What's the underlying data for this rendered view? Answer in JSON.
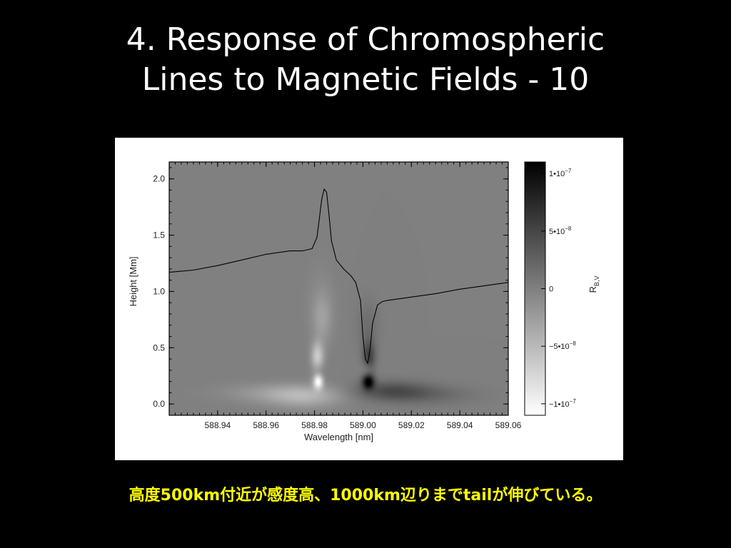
{
  "slide": {
    "title_line1": "4. Response of Chromospheric",
    "title_line2": "Lines to Magnetic Fields - 10",
    "caption": "高度500km付近が感度高、1000km辺りまでtailが伸びている。"
  },
  "chart_data": {
    "type": "heatmap",
    "xlabel": "Wavelength [nm]",
    "ylabel": "Height [Mm]",
    "xlim": [
      588.92,
      589.06
    ],
    "ylim": [
      -0.1,
      2.15
    ],
    "x_ticks": [
      "588.94",
      "588.96",
      "588.98",
      "589.00",
      "589.02",
      "589.04",
      "589.06"
    ],
    "x_tick_values": [
      588.94,
      588.96,
      588.98,
      589.0,
      589.02,
      589.04,
      589.06
    ],
    "y_ticks": [
      "0.0",
      "0.5",
      "1.0",
      "1.5",
      "2.0"
    ],
    "y_tick_values": [
      0.0,
      0.5,
      1.0,
      1.5,
      2.0
    ],
    "colorbar": {
      "label": "R",
      "label_sub": "B,V",
      "range": [
        -1.1e-07,
        1.1e-07
      ],
      "tick_values": [
        1e-07,
        5e-08,
        0,
        -5e-08,
        -1e-07
      ],
      "ticks": [
        {
          "base": "1•10",
          "exp": "−7"
        },
        {
          "base": "5•10",
          "exp": "−8"
        },
        {
          "base": "0",
          "exp": ""
        },
        {
          "base": "−5•10",
          "exp": "−8"
        },
        {
          "base": "−1•10",
          "exp": "−7"
        }
      ]
    },
    "features": [
      {
        "x": 588.976,
        "y": 0.06,
        "sx": 0.011,
        "sy": 0.07,
        "value": -3.6e-08
      },
      {
        "x": 588.965,
        "y": 0.1,
        "sx": 0.016,
        "sy": 0.06,
        "value": -2.2e-08
      },
      {
        "x": 588.9815,
        "y": 0.2,
        "sx": 0.0014,
        "sy": 0.045,
        "value": -1.05e-07
      },
      {
        "x": 588.9818,
        "y": 0.3,
        "sx": 0.0017,
        "sy": 0.05,
        "value": 1e-08
      },
      {
        "x": 588.9812,
        "y": 0.42,
        "sx": 0.0018,
        "sy": 0.09,
        "value": -6.5e-08
      },
      {
        "x": 588.9832,
        "y": 0.75,
        "sx": 0.0028,
        "sy": 0.15,
        "value": -2.2e-08
      },
      {
        "x": 588.9825,
        "y": 0.9,
        "sx": 0.0038,
        "sy": 0.22,
        "value": -1e-08
      },
      {
        "x": 589.0022,
        "y": 0.2,
        "sx": 0.0017,
        "sy": 0.045,
        "value": 1.1e-07
      },
      {
        "x": 589.0018,
        "y": 0.3,
        "sx": 0.0016,
        "sy": 0.05,
        "value": -2e-08
      },
      {
        "x": 589.0025,
        "y": 0.42,
        "sx": 0.0018,
        "sy": 0.1,
        "value": 5.5e-08
      },
      {
        "x": 589.011,
        "y": 0.12,
        "sx": 0.011,
        "sy": 0.06,
        "value": 3.8e-08
      },
      {
        "x": 589.025,
        "y": 0.08,
        "sx": 0.014,
        "sy": 0.06,
        "value": 2e-08
      },
      {
        "x": 589.002,
        "y": 0.7,
        "sx": 0.003,
        "sy": 0.15,
        "value": 1.5e-08
      }
    ],
    "series": [
      {
        "type": "line",
        "x": [
          588.92,
          588.93,
          588.94,
          588.95,
          588.96,
          588.97,
          588.975,
          588.979,
          588.981,
          588.982,
          588.983,
          588.984,
          588.985,
          588.986,
          588.987,
          588.989,
          588.992,
          588.995,
          588.997,
          588.999,
          589.0,
          589.001,
          589.002,
          589.003,
          589.004,
          589.006,
          589.008,
          589.01,
          589.02,
          589.03,
          589.04,
          589.05,
          589.06
        ],
        "y": [
          1.17,
          1.19,
          1.23,
          1.28,
          1.33,
          1.36,
          1.36,
          1.38,
          1.48,
          1.65,
          1.82,
          1.91,
          1.88,
          1.68,
          1.45,
          1.28,
          1.2,
          1.14,
          1.08,
          0.92,
          0.6,
          0.4,
          0.36,
          0.5,
          0.72,
          0.88,
          0.91,
          0.92,
          0.95,
          0.98,
          1.02,
          1.05,
          1.08
        ]
      }
    ]
  }
}
